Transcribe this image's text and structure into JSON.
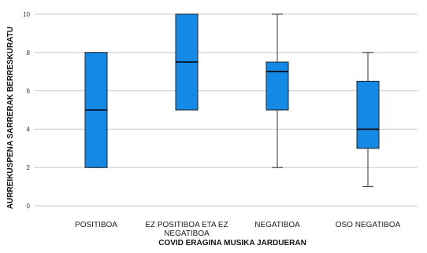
{
  "chart_data": {
    "type": "boxplot",
    "xlabel": "COVID ERAGINA MUSIKA JARDUERAN",
    "ylabel": "AURREIKUSPENA SARRERAK BERRESKURATU",
    "ylim": [
      0,
      10
    ],
    "yticks": [
      "0",
      "2",
      "4",
      "6",
      "8",
      "10"
    ],
    "grid": true,
    "box_color": "#1589e6",
    "categories": [
      [
        "POSITIBOA"
      ],
      [
        "EZ POSITIBOA ETA EZ",
        "NEGATIBOA"
      ],
      [
        "NEGATIBOA"
      ],
      [
        "OSO NEGATIBOA"
      ]
    ],
    "boxes": [
      {
        "min": 2,
        "q1": 2,
        "median": 5,
        "q3": 8,
        "max": 8
      },
      {
        "min": 5,
        "q1": 5,
        "median": 7.5,
        "q3": 10,
        "max": 10
      },
      {
        "min": 2,
        "q1": 5,
        "median": 7,
        "q3": 7.5,
        "max": 10
      },
      {
        "min": 1,
        "q1": 3,
        "median": 4,
        "q3": 6.5,
        "max": 8
      }
    ]
  }
}
